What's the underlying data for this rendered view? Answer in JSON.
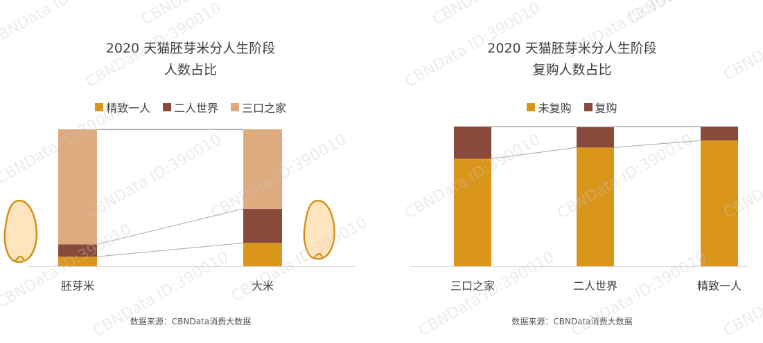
{
  "watermark_text": "CBNData ID:390010",
  "colors": {
    "gold": "#DA961A",
    "brown": "#874A3B",
    "tan": "#DEAB7E",
    "grain_fill": "#FFE5BD",
    "grain_edge": "#D58E16",
    "connector": "#A8A8A8",
    "axis": "#D9D9D9"
  },
  "left": {
    "title_line1": "2020 天猫胚芽米分人生阶段",
    "title_line2": "人数占比",
    "source": "数据来源：CBNData消费大数据",
    "icons": [
      "rice-grain-icon",
      "rice-grain-icon"
    ]
  },
  "right": {
    "title_line1": "2020 天猫胚芽米分人生阶段",
    "title_line2": "复购人数占比",
    "source": "数据来源：CBNData消费大数据"
  },
  "chart_data": [
    {
      "type": "bar",
      "stacked": true,
      "percent": true,
      "title": "2020 天猫胚芽米分人生阶段 人数占比",
      "categories": [
        "胚芽米",
        "大米"
      ],
      "series": [
        {
          "name": "精致一人",
          "color": "#DA961A",
          "values": [
            7,
            17
          ]
        },
        {
          "name": "二人世界",
          "color": "#874A3B",
          "values": [
            9,
            25
          ]
        },
        {
          "name": "三口之家",
          "color": "#DEAB7E",
          "values": [
            84,
            58
          ]
        }
      ],
      "ylim": [
        0,
        100
      ],
      "legend": "top-center",
      "grid": false
    },
    {
      "type": "bar",
      "stacked": true,
      "percent": true,
      "title": "2020 天猫胚芽米分人生阶段 复购人数占比",
      "categories": [
        "三口之家",
        "二人世界",
        "精致一人"
      ],
      "series": [
        {
          "name": "未复购",
          "color": "#DA961A",
          "values": [
            77,
            85,
            90
          ]
        },
        {
          "name": "复购",
          "color": "#874A3B",
          "values": [
            23,
            15,
            10
          ]
        }
      ],
      "ylim": [
        0,
        100
      ],
      "legend": "top-center",
      "grid": false
    }
  ]
}
